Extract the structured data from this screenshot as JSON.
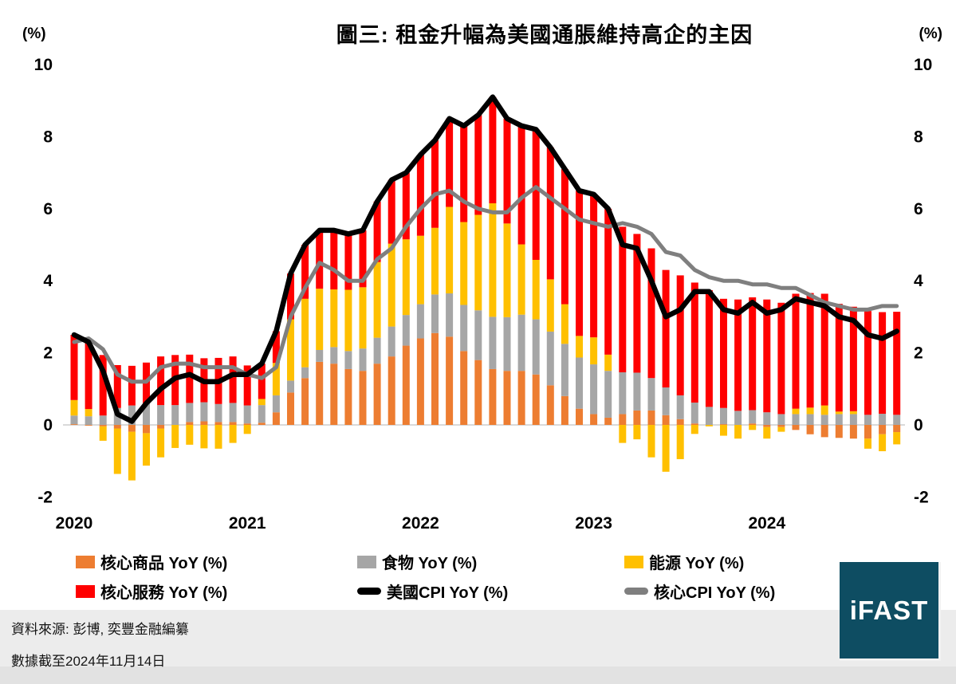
{
  "page": {
    "title": "圖三: 租金升幅為美國通脹維持高企的主因",
    "axis_unit_left": "(%)",
    "axis_unit_right": "(%)"
  },
  "legend": {
    "items": [
      {
        "id": "core-goods",
        "label": "核心商品 YoY (%)",
        "swatch": "square",
        "color": "#ED7D31"
      },
      {
        "id": "food",
        "label": "食物 YoY (%)",
        "swatch": "square",
        "color": "#A6A6A6"
      },
      {
        "id": "energy",
        "label": "能源 YoY (%)",
        "swatch": "square",
        "color": "#FFC000"
      },
      {
        "id": "core-services",
        "label": "核心服務 YoY (%)",
        "swatch": "square",
        "color": "#FF0000"
      },
      {
        "id": "us-cpi",
        "label": "美國CPI YoY (%)",
        "swatch": "line",
        "color": "#000000"
      },
      {
        "id": "core-cpi",
        "label": "核心CPI YoY (%)",
        "swatch": "line",
        "color": "#7F7F7F"
      }
    ]
  },
  "footer": {
    "source": "資料來源: 彭博, 奕豐金融編纂",
    "as_of": "數據截至2024年11月14日"
  },
  "logo": {
    "text": "iFAST",
    "bg_color": "#0E4D62"
  },
  "chart_data": {
    "type": "stacked-bar-with-lines",
    "title": "圖三: 租金升幅為美國通脹維持高企的主因",
    "unit": "%",
    "y_ticks": [
      10,
      8,
      6,
      4,
      2,
      0,
      -2
    ],
    "ylim": [
      -2.6,
      10
    ],
    "grid": "zero-line-only",
    "zero_line_color": "#D9D9D9",
    "legend_position": "bottom",
    "x_year_labels": [
      "2020",
      "2021",
      "2022",
      "2023",
      "2024"
    ],
    "months": [
      "2020-01",
      "2020-02",
      "2020-03",
      "2020-04",
      "2020-05",
      "2020-06",
      "2020-07",
      "2020-08",
      "2020-09",
      "2020-10",
      "2020-11",
      "2020-12",
      "2021-01",
      "2021-02",
      "2021-03",
      "2021-04",
      "2021-05",
      "2021-06",
      "2021-07",
      "2021-08",
      "2021-09",
      "2021-10",
      "2021-11",
      "2021-12",
      "2022-01",
      "2022-02",
      "2022-03",
      "2022-04",
      "2022-05",
      "2022-06",
      "2022-07",
      "2022-08",
      "2022-09",
      "2022-10",
      "2022-11",
      "2022-12",
      "2023-01",
      "2023-02",
      "2023-03",
      "2023-04",
      "2023-05",
      "2023-06",
      "2023-07",
      "2023-08",
      "2023-09",
      "2023-10",
      "2023-11",
      "2023-12",
      "2024-01",
      "2024-02",
      "2024-03",
      "2024-04",
      "2024-05",
      "2024-06",
      "2024-07",
      "2024-08",
      "2024-09",
      "2024-10"
    ],
    "bar_series": [
      {
        "name": "核心商品 YoY (%)",
        "color": "#ED7D31",
        "values": [
          0.02,
          -0.02,
          -0.04,
          -0.1,
          -0.19,
          -0.23,
          -0.1,
          0.0,
          0.08,
          0.1,
          0.08,
          0.08,
          0.04,
          0.06,
          0.35,
          0.9,
          1.3,
          1.75,
          1.7,
          1.55,
          1.5,
          1.7,
          1.9,
          2.2,
          2.4,
          2.55,
          2.45,
          2.05,
          1.8,
          1.55,
          1.5,
          1.5,
          1.4,
          1.1,
          0.8,
          0.45,
          0.3,
          0.2,
          0.3,
          0.4,
          0.4,
          0.27,
          0.16,
          0.04,
          0.0,
          0.02,
          0.0,
          0.04,
          -0.06,
          -0.06,
          -0.14,
          -0.26,
          -0.34,
          -0.36,
          -0.38,
          -0.38,
          -0.26,
          -0.2
        ]
      },
      {
        "name": "食物 YoY (%)",
        "color": "#A6A6A6",
        "values": [
          0.24,
          0.24,
          0.26,
          0.47,
          0.54,
          0.61,
          0.55,
          0.55,
          0.53,
          0.53,
          0.5,
          0.53,
          0.5,
          0.49,
          0.47,
          0.33,
          0.3,
          0.33,
          0.46,
          0.5,
          0.62,
          0.72,
          0.83,
          0.85,
          0.95,
          1.07,
          1.2,
          1.28,
          1.38,
          1.45,
          1.49,
          1.56,
          1.53,
          1.49,
          1.45,
          1.42,
          1.38,
          1.3,
          1.16,
          1.05,
          0.9,
          0.77,
          0.66,
          0.58,
          0.5,
          0.45,
          0.39,
          0.37,
          0.35,
          0.3,
          0.3,
          0.3,
          0.28,
          0.3,
          0.3,
          0.28,
          0.31,
          0.28
        ]
      },
      {
        "name": "能源 YoY (%)",
        "color": "#FFC000",
        "values": [
          0.43,
          0.2,
          -0.4,
          -1.26,
          -1.35,
          -0.9,
          -0.8,
          -0.64,
          -0.55,
          -0.65,
          -0.66,
          -0.5,
          -0.25,
          0.17,
          0.9,
          1.7,
          1.9,
          1.7,
          1.6,
          1.7,
          1.7,
          2.1,
          2.3,
          2.1,
          1.9,
          1.85,
          2.4,
          2.3,
          2.65,
          3.15,
          2.6,
          1.95,
          1.65,
          1.45,
          1.1,
          0.6,
          0.75,
          0.45,
          -0.5,
          -0.4,
          -0.9,
          -1.3,
          -0.95,
          -0.25,
          -0.04,
          -0.3,
          -0.38,
          -0.14,
          -0.32,
          -0.13,
          0.15,
          0.18,
          0.26,
          0.07,
          0.08,
          -0.28,
          -0.47,
          -0.34
        ]
      },
      {
        "name": "核心服務 YoY (%)",
        "color": "#FF0000",
        "values": [
          1.81,
          1.88,
          1.68,
          1.19,
          1.1,
          1.12,
          1.35,
          1.39,
          1.34,
          1.22,
          1.28,
          1.29,
          1.11,
          0.98,
          0.88,
          1.27,
          1.5,
          1.62,
          1.64,
          1.55,
          1.58,
          1.68,
          1.77,
          1.85,
          2.25,
          2.43,
          2.45,
          2.67,
          2.77,
          2.95,
          2.91,
          3.29,
          3.62,
          3.66,
          3.75,
          4.03,
          3.97,
          4.05,
          4.04,
          3.85,
          3.6,
          3.26,
          3.33,
          3.33,
          3.24,
          3.03,
          3.09,
          3.13,
          3.13,
          3.09,
          3.19,
          3.18,
          3.1,
          2.99,
          2.9,
          2.88,
          2.82,
          2.86
        ]
      }
    ],
    "line_series": [
      {
        "name": "美國CPI YoY (%)",
        "color": "#000000",
        "stroke_width": 6.5,
        "values": [
          2.5,
          2.3,
          1.5,
          0.3,
          0.1,
          0.6,
          1.0,
          1.3,
          1.4,
          1.2,
          1.2,
          1.4,
          1.4,
          1.7,
          2.6,
          4.2,
          5.0,
          5.4,
          5.4,
          5.3,
          5.4,
          6.2,
          6.8,
          7.0,
          7.5,
          7.9,
          8.5,
          8.3,
          8.6,
          9.1,
          8.5,
          8.3,
          8.2,
          7.7,
          7.1,
          6.5,
          6.4,
          6.0,
          5.0,
          4.9,
          4.0,
          3.0,
          3.2,
          3.7,
          3.7,
          3.2,
          3.1,
          3.4,
          3.1,
          3.2,
          3.5,
          3.4,
          3.3,
          3.0,
          2.9,
          2.5,
          2.4,
          2.6
        ]
      },
      {
        "name": "核心CPI YoY (%)",
        "color": "#7F7F7F",
        "stroke_width": 5,
        "values": [
          2.3,
          2.4,
          2.1,
          1.4,
          1.2,
          1.2,
          1.6,
          1.7,
          1.7,
          1.6,
          1.6,
          1.6,
          1.4,
          1.3,
          1.6,
          3.0,
          3.8,
          4.5,
          4.3,
          4.0,
          4.0,
          4.6,
          4.9,
          5.5,
          6.0,
          6.4,
          6.5,
          6.2,
          6.0,
          5.9,
          5.9,
          6.3,
          6.6,
          6.3,
          6.0,
          5.7,
          5.6,
          5.5,
          5.6,
          5.5,
          5.3,
          4.8,
          4.7,
          4.3,
          4.1,
          4.0,
          4.0,
          3.9,
          3.9,
          3.8,
          3.8,
          3.6,
          3.4,
          3.3,
          3.2,
          3.2,
          3.3,
          3.3
        ]
      }
    ]
  }
}
